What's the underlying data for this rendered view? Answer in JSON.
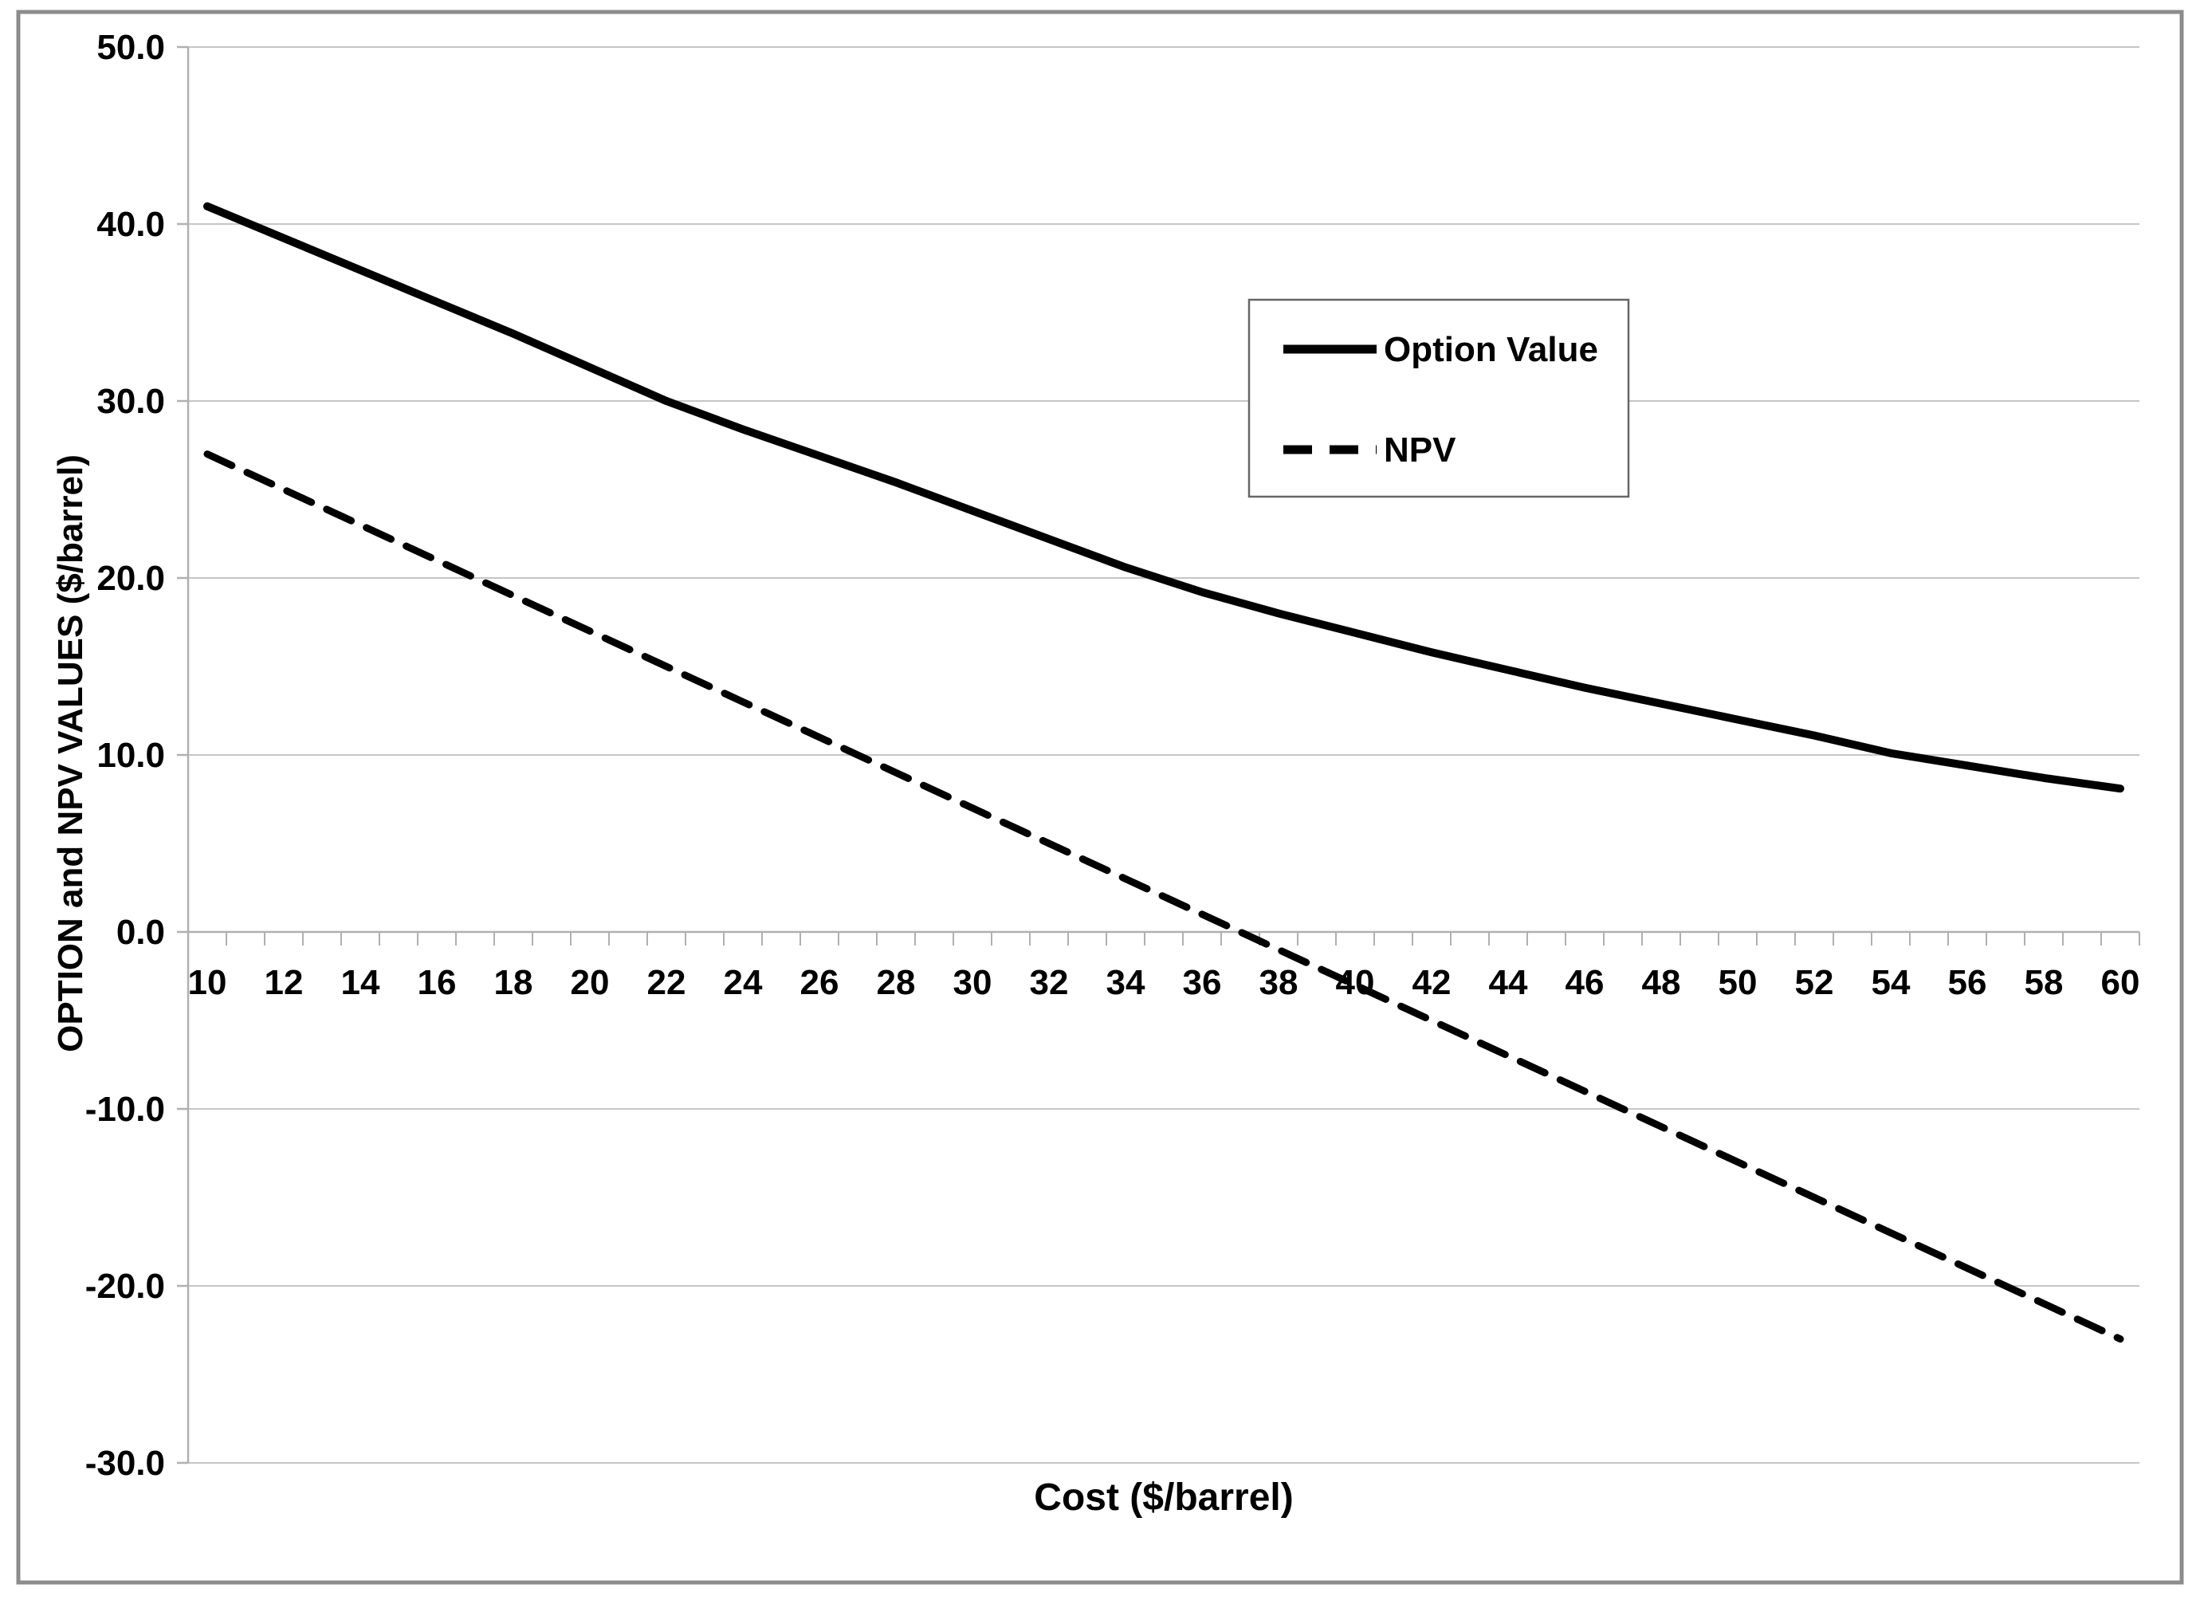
{
  "title": "",
  "colors": {
    "series_line": "#000000",
    "gridline": "#c6c6c6",
    "axis_line": "#b0b0b0",
    "outer_border": "#8c8c8c",
    "legend_border": "#666666",
    "background": "#ffffff",
    "text": "#000000"
  },
  "legend": {
    "items": [
      "Option Value",
      "NPV"
    ]
  },
  "chart_data": {
    "type": "line",
    "title": "",
    "xlabel": "Cost ($/barrel)",
    "ylabel": "OPTION and NPV VALUES ($/barrel)",
    "x": [
      10,
      12,
      14,
      16,
      18,
      20,
      22,
      24,
      26,
      28,
      30,
      32,
      34,
      36,
      38,
      40,
      42,
      44,
      46,
      48,
      50,
      52,
      54,
      56,
      58,
      60
    ],
    "x_tick_labels": [
      "10",
      "12",
      "14",
      "16",
      "18",
      "20",
      "22",
      "24",
      "26",
      "28",
      "30",
      "32",
      "34",
      "36",
      "38",
      "40",
      "42",
      "44",
      "46",
      "48",
      "50",
      "52",
      "54",
      "56",
      "58",
      "60"
    ],
    "series": [
      {
        "name": "Option Value",
        "line_style": "solid",
        "values": [
          41.0,
          39.2,
          37.4,
          35.6,
          33.8,
          31.9,
          30.0,
          28.4,
          26.9,
          25.4,
          23.8,
          22.2,
          20.6,
          19.2,
          18.0,
          16.9,
          15.8,
          14.8,
          13.8,
          12.9,
          12.0,
          11.1,
          10.1,
          9.4,
          8.7,
          8.1
        ]
      },
      {
        "name": "NPV",
        "line_style": "dashed",
        "values": [
          27.0,
          25.0,
          23.0,
          21.0,
          19.0,
          17.0,
          15.0,
          13.0,
          11.0,
          9.0,
          7.0,
          5.0,
          3.0,
          1.0,
          -1.0,
          -3.0,
          -5.0,
          -7.0,
          -9.0,
          -11.0,
          -13.0,
          -15.0,
          -17.0,
          -19.0,
          -21.0,
          -23.0
        ]
      }
    ],
    "xlim": [
      9.5,
      60.5
    ],
    "ylim": [
      -30,
      50
    ],
    "y_ticks": [
      50,
      40,
      30,
      20,
      10,
      0,
      -10,
      -20,
      -30
    ],
    "y_tick_labels": [
      "50.0",
      "40.0",
      "30.0",
      "20.0",
      "10.0",
      "0.0",
      "-10.0",
      "-20.0",
      "-30.0"
    ],
    "x_minor_tick_step": 1,
    "grid": "horizontal-only",
    "legend_position": "inside-top-right"
  }
}
